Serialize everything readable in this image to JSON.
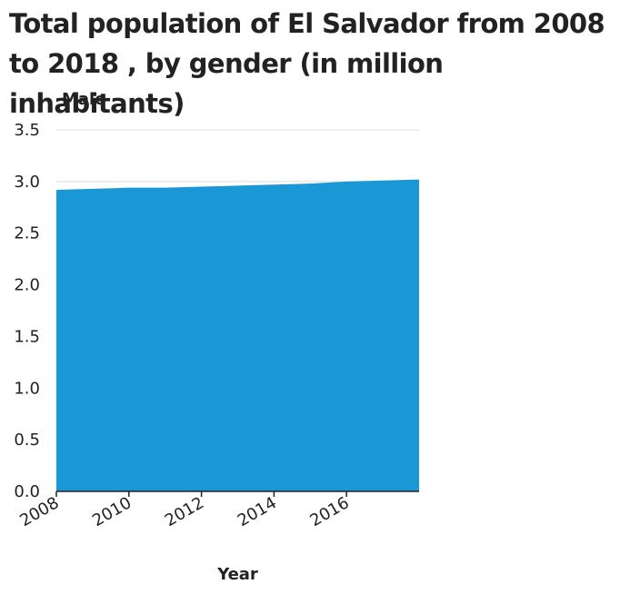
{
  "chart_data": {
    "type": "area",
    "title": "Total population of El Salvador from 2008 to 2018 , by gender (in million inhabitants)",
    "xlabel": "Year",
    "ylabel": "Male",
    "x": [
      2008,
      2009,
      2010,
      2011,
      2012,
      2013,
      2014,
      2015,
      2016,
      2017,
      2018
    ],
    "series": [
      {
        "name": "Male",
        "values": [
          2.92,
          2.93,
          2.94,
          2.94,
          2.95,
          2.96,
          2.97,
          2.98,
          3.0,
          3.01,
          3.02
        ]
      }
    ],
    "xticks": [
      2008,
      2010,
      2012,
      2014,
      2016
    ],
    "yticks": [
      0.0,
      0.5,
      1.0,
      1.5,
      2.0,
      2.5,
      3.0,
      3.5
    ],
    "ytick_labels": [
      "0.0",
      "0.5",
      "1.0",
      "1.5",
      "2.0",
      "2.5",
      "3.0",
      "3.5"
    ],
    "xlim": [
      2008,
      2018
    ],
    "ylim": [
      0,
      3.5
    ],
    "grid": "horizontal",
    "legend": "none",
    "colors": {
      "area": "#1a98d6",
      "grid": "#dddddd",
      "axis": "#222222"
    }
  }
}
